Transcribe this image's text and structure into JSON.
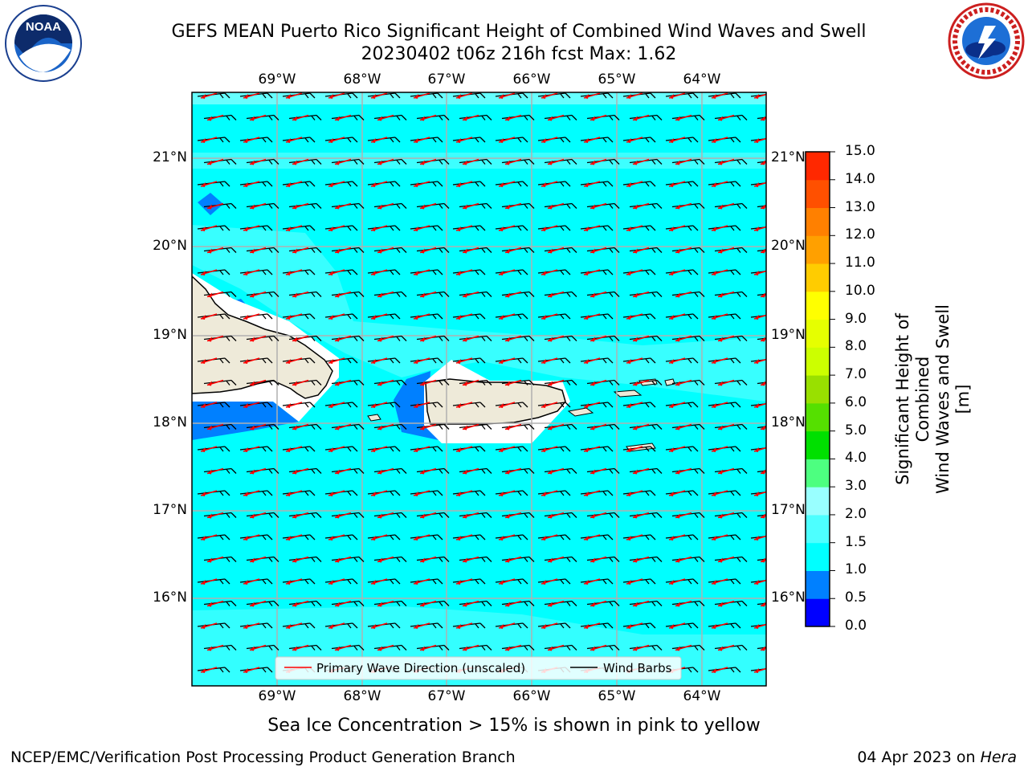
{
  "header": {
    "title_line1": "GEFS MEAN Puerto Rico Significant Height of Combined Wind Waves and Swell",
    "title_line2": "20230402 t06z 216h fcst   Max: 1.62"
  },
  "logos": {
    "left": {
      "name": "NOAA",
      "ring_text": "NATIONAL OCEANIC AND ATMOSPHERIC ADMINISTRATION",
      "bottom_text": "U.S. DEPARTMENT OF COMMERCE"
    },
    "right": {
      "ring_text": "NATIONAL WEATHER SERVICE"
    }
  },
  "map": {
    "lon_labels": [
      "69°W",
      "68°W",
      "67°W",
      "66°W",
      "65°W",
      "64°W"
    ],
    "lat_labels": [
      "21°N",
      "20°N",
      "19°N",
      "18°N",
      "17°N",
      "16°N"
    ],
    "ocean_color": "#00ffff",
    "land_color": "#eeead9",
    "barb_color": "#000000",
    "wave_arrow_color": "#ff0000"
  },
  "legend": {
    "wave_label": "Primary Wave Direction (unscaled)",
    "barb_label": "Wind Barbs"
  },
  "colorbar": {
    "label_line1": "Significant Height of Combined",
    "label_line2": "Wind Waves and Swell [m]",
    "ticks": [
      "0.0",
      "0.5",
      "1.0",
      "1.5",
      "2.0",
      "3.0",
      "4.0",
      "5.0",
      "6.0",
      "7.0",
      "8.0",
      "9.0",
      "10.0",
      "11.0",
      "12.0",
      "13.0",
      "14.0",
      "15.0"
    ],
    "colors": [
      "#0000ff",
      "#0080ff",
      "#00ffff",
      "#4dffff",
      "#99ffff",
      "#4dff80",
      "#00e000",
      "#55e000",
      "#99e000",
      "#ccff00",
      "#e6ff00",
      "#ffff00",
      "#ffcc00",
      "#ffa000",
      "#ff8000",
      "#ff5000",
      "#ff2800",
      "#ff0000"
    ]
  },
  "caption": "Sea Ice Concentration > 15% is shown in pink to yellow",
  "footer": {
    "left": "NCEP/EMC/Verification Post Processing Product Generation Branch",
    "date": "04 Apr 2023 on ",
    "machine": "Hera"
  }
}
